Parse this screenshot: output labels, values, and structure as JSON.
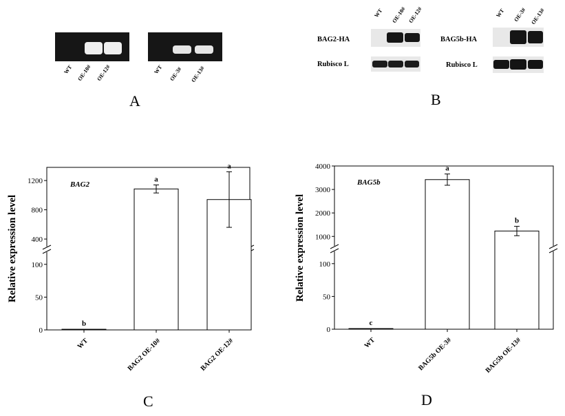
{
  "panels": {
    "A": {
      "letter": "A",
      "gels": [
        {
          "lanes": [
            "WT",
            "OE-10#",
            "OE-12#"
          ]
        },
        {
          "lanes": [
            "WT",
            "OE-3#",
            "OE-13#"
          ]
        }
      ]
    },
    "B": {
      "letter": "B",
      "blots": [
        {
          "lanes": [
            "WT",
            "OE-10#",
            "OE-12#"
          ],
          "rows": [
            "BAG2-HA",
            "Rubisco L"
          ]
        },
        {
          "lanes": [
            "WT",
            "OE-3#",
            "OE-13#"
          ],
          "rows": [
            "BAG5b-HA",
            "Rubisco L"
          ]
        }
      ]
    },
    "C": {
      "letter": "C"
    },
    "D": {
      "letter": "D"
    }
  },
  "chart_data": [
    {
      "type": "bar",
      "panel": "C",
      "gene_label": "BAG2",
      "ylabel": "Relative expression level",
      "xlabel": "",
      "categories": [
        "WT",
        "BAG2 OE-10#",
        "BAG2 OE-12#"
      ],
      "values": [
        1,
        1085,
        940
      ],
      "errors": [
        0.5,
        55,
        380
      ],
      "significance": [
        "b",
        "a",
        "a"
      ],
      "y_break": true,
      "lower_axis": {
        "range": [
          0,
          125
        ],
        "ticks": [
          "0",
          "50",
          "100"
        ]
      },
      "upper_axis": {
        "range": [
          250,
          1380
        ],
        "ticks": [
          "400",
          "800",
          "1200"
        ]
      }
    },
    {
      "type": "bar",
      "panel": "D",
      "gene_label": "BAG5b",
      "ylabel": "Relative expression level",
      "xlabel": "",
      "categories": [
        "WT",
        "BAG5b OE-3#",
        "BAG5b OE-13#"
      ],
      "values": [
        1,
        3420,
        1230
      ],
      "errors": [
        0.5,
        240,
        200
      ],
      "significance": [
        "c",
        "a",
        "b"
      ],
      "y_break": true,
      "lower_axis": {
        "range": [
          0,
          125
        ],
        "ticks": [
          "0",
          "50",
          "100"
        ]
      },
      "upper_axis": {
        "range": [
          450,
          4000
        ],
        "ticks": [
          "1000",
          "2000",
          "3000",
          "4000"
        ]
      }
    }
  ],
  "colors": {
    "axis": "#000000",
    "bar_fill": "#ffffff",
    "gel_bg": "#111111",
    "band": "#f2f2f2",
    "blot_band": "#111111"
  }
}
